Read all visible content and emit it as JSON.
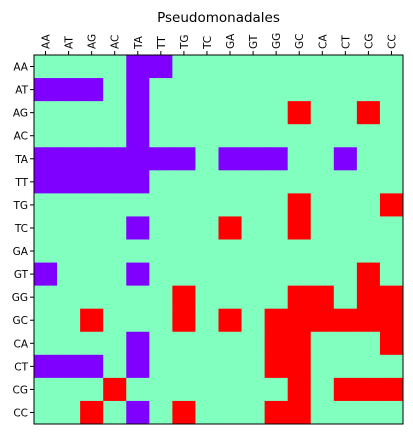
{
  "chart_data": {
    "type": "heatmap",
    "title": "Pseudomonadales",
    "xlabel": "",
    "ylabel": "",
    "x_labels": [
      "AA",
      "AT",
      "AG",
      "AC",
      "TA",
      "TT",
      "TG",
      "TC",
      "GA",
      "GT",
      "GG",
      "GC",
      "CA",
      "CT",
      "CG",
      "CC"
    ],
    "y_labels": [
      "AA",
      "AT",
      "AG",
      "AC",
      "TA",
      "TT",
      "TG",
      "TC",
      "GA",
      "GT",
      "GG",
      "GC",
      "CA",
      "CT",
      "CG",
      "CC"
    ],
    "x_axis_position": "top",
    "grid": false,
    "legend": "none",
    "value_colors": {
      "-1": "#8000ff",
      "0": "#80ffbf",
      "1": "#ff0000"
    },
    "matrix": [
      [
        0,
        0,
        0,
        0,
        -1,
        -1,
        0,
        0,
        0,
        0,
        0,
        0,
        0,
        0,
        0,
        0
      ],
      [
        -1,
        -1,
        -1,
        0,
        -1,
        0,
        0,
        0,
        0,
        0,
        0,
        0,
        0,
        0,
        0,
        0
      ],
      [
        0,
        0,
        0,
        0,
        -1,
        0,
        0,
        0,
        0,
        0,
        0,
        1,
        0,
        0,
        1,
        0
      ],
      [
        0,
        0,
        0,
        0,
        -1,
        0,
        0,
        0,
        0,
        0,
        0,
        0,
        0,
        0,
        0,
        0
      ],
      [
        -1,
        -1,
        -1,
        -1,
        -1,
        -1,
        -1,
        0,
        -1,
        -1,
        -1,
        0,
        0,
        -1,
        0,
        0
      ],
      [
        -1,
        -1,
        -1,
        -1,
        -1,
        0,
        0,
        0,
        0,
        0,
        0,
        0,
        0,
        0,
        0,
        0
      ],
      [
        0,
        0,
        0,
        0,
        0,
        0,
        0,
        0,
        0,
        0,
        0,
        1,
        0,
        0,
        0,
        1
      ],
      [
        0,
        0,
        0,
        0,
        -1,
        0,
        0,
        0,
        1,
        0,
        0,
        1,
        0,
        0,
        0,
        0
      ],
      [
        0,
        0,
        0,
        0,
        0,
        0,
        0,
        0,
        0,
        0,
        0,
        0,
        0,
        0,
        0,
        0
      ],
      [
        -1,
        0,
        0,
        0,
        -1,
        0,
        0,
        0,
        0,
        0,
        0,
        0,
        0,
        0,
        1,
        0
      ],
      [
        0,
        0,
        0,
        0,
        0,
        0,
        1,
        0,
        0,
        0,
        0,
        1,
        1,
        0,
        1,
        1
      ],
      [
        0,
        0,
        1,
        0,
        0,
        0,
        1,
        0,
        1,
        0,
        1,
        1,
        1,
        1,
        1,
        1
      ],
      [
        0,
        0,
        0,
        0,
        -1,
        0,
        0,
        0,
        0,
        0,
        1,
        1,
        0,
        0,
        0,
        1
      ],
      [
        -1,
        -1,
        -1,
        0,
        -1,
        0,
        0,
        0,
        0,
        0,
        1,
        1,
        0,
        0,
        0,
        0
      ],
      [
        0,
        0,
        0,
        1,
        0,
        0,
        0,
        0,
        0,
        0,
        0,
        1,
        0,
        1,
        1,
        1
      ],
      [
        0,
        0,
        1,
        0,
        -1,
        0,
        1,
        0,
        0,
        0,
        1,
        1,
        0,
        0,
        0,
        0
      ]
    ]
  }
}
